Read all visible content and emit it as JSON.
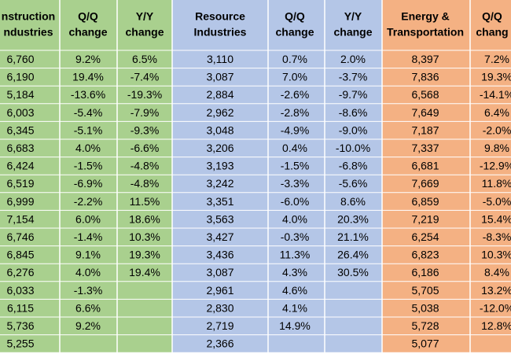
{
  "table": {
    "headers": [
      [
        "nstruction",
        "ndustries"
      ],
      [
        "Q/Q",
        "change"
      ],
      [
        "Y/Y",
        "change"
      ],
      [
        "Resource",
        "Industries"
      ],
      [
        "Q/Q",
        "change"
      ],
      [
        "Y/Y",
        "change"
      ],
      [
        "Energy &",
        "Transportation"
      ],
      [
        "Q/Q",
        "chang"
      ]
    ],
    "rows": [
      [
        "6,760",
        "9.2%",
        "6.5%",
        "3,110",
        "0.7%",
        "2.0%",
        "8,397",
        "7.2%"
      ],
      [
        "6,190",
        "19.4%",
        "-7.4%",
        "3,087",
        "7.0%",
        "-3.7%",
        "7,836",
        "19.3%"
      ],
      [
        "5,184",
        "-13.6%",
        "-19.3%",
        "2,884",
        "-2.6%",
        "-9.7%",
        "6,568",
        "-14.1%"
      ],
      [
        "6,003",
        "-5.4%",
        "-7.9%",
        "2,962",
        "-2.8%",
        "-8.6%",
        "7,649",
        "6.4%"
      ],
      [
        "6,345",
        "-5.1%",
        "-9.3%",
        "3,048",
        "-4.9%",
        "-9.0%",
        "7,187",
        "-2.0%"
      ],
      [
        "6,683",
        "4.0%",
        "-6.6%",
        "3,206",
        "0.4%",
        "-10.0%",
        "7,337",
        "9.8%"
      ],
      [
        "6,424",
        "-1.5%",
        "-4.8%",
        "3,193",
        "-1.5%",
        "-6.8%",
        "6,681",
        "-12.9%"
      ],
      [
        "6,519",
        "-6.9%",
        "-4.8%",
        "3,242",
        "-3.3%",
        "-5.6%",
        "7,669",
        "11.8%"
      ],
      [
        "6,999",
        "-2.2%",
        "11.5%",
        "3,351",
        "-6.0%",
        "8.6%",
        "6,859",
        "-5.0%"
      ],
      [
        "7,154",
        "6.0%",
        "18.6%",
        "3,563",
        "4.0%",
        "20.3%",
        "7,219",
        "15.4%"
      ],
      [
        "6,746",
        "-1.4%",
        "10.3%",
        "3,427",
        "-0.3%",
        "21.1%",
        "6,254",
        "-8.3%"
      ],
      [
        "6,845",
        "9.1%",
        "19.3%",
        "3,436",
        "11.3%",
        "26.4%",
        "6,823",
        "10.3%"
      ],
      [
        "6,276",
        "4.0%",
        "19.4%",
        "3,087",
        "4.3%",
        "30.5%",
        "6,186",
        "8.4%"
      ],
      [
        "6,033",
        "-1.3%",
        null,
        "2,961",
        "4.6%",
        null,
        "5,705",
        "13.2%"
      ],
      [
        "6,115",
        "6.6%",
        null,
        "2,830",
        "4.1%",
        null,
        "5,038",
        "-12.0%"
      ],
      [
        "5,736",
        "9.2%",
        null,
        "2,719",
        "14.9%",
        null,
        "5,728",
        "12.8%"
      ],
      [
        "5,255",
        null,
        null,
        "2,366",
        null,
        null,
        "5,077",
        null
      ]
    ]
  }
}
